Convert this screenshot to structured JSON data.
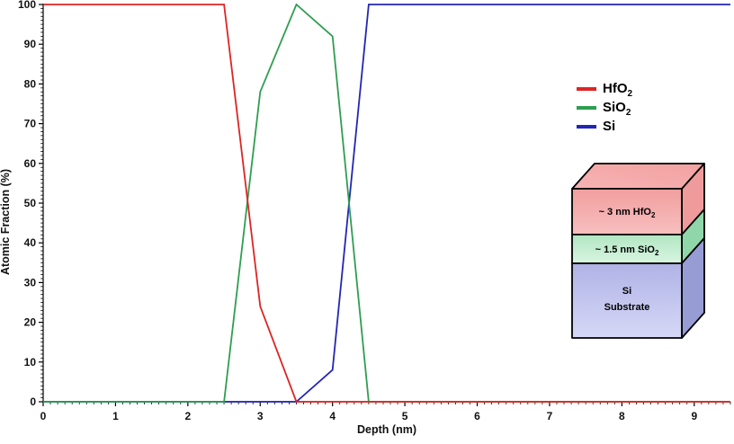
{
  "page": {
    "background": "#ffffff"
  },
  "chart_data": {
    "type": "line",
    "title": "",
    "xlabel": "Depth (nm)",
    "ylabel": "Atomic Fraction (%)",
    "xlim": [
      0,
      9.5
    ],
    "ylim": [
      0,
      100
    ],
    "x_major_ticks": [
      0,
      1,
      2,
      3,
      4,
      5,
      6,
      7,
      8,
      9
    ],
    "x_minor_step": 0.1,
    "y_major_ticks": [
      0,
      10,
      20,
      30,
      40,
      50,
      60,
      70,
      80,
      90,
      100
    ],
    "y_minor_step": 1,
    "grid": false,
    "legend_position": "upper-right",
    "x": [
      0,
      0.5,
      1,
      1.5,
      2,
      2.5,
      3,
      3.5,
      4,
      4.5,
      5,
      5.5,
      6,
      6.5,
      7,
      7.5,
      8,
      8.5,
      9,
      9.5
    ],
    "series": [
      {
        "name": "HfO2",
        "label_base": "HfO",
        "label_sub": "2",
        "color": "#de2424",
        "values": [
          100,
          100,
          100,
          100,
          100,
          100,
          24,
          0,
          0,
          0,
          0,
          0,
          0,
          0,
          0,
          0,
          0,
          0,
          0,
          0
        ]
      },
      {
        "name": "SiO2",
        "label_base": "SiO",
        "label_sub": "2",
        "color": "#2e9e50",
        "values": [
          0,
          0,
          0,
          0,
          0,
          0,
          78,
          100,
          92,
          0,
          0,
          0,
          0,
          0,
          0,
          0,
          0,
          0,
          0,
          0
        ]
      },
      {
        "name": "Si",
        "label_base": "Si",
        "label_sub": "",
        "color": "#2326b4",
        "values": [
          0,
          0,
          0,
          0,
          0,
          0,
          0,
          0,
          8,
          100,
          100,
          100,
          100,
          100,
          100,
          100,
          100,
          100,
          100,
          100
        ]
      }
    ]
  },
  "legend": {
    "items": [
      {
        "name": "HfO2",
        "label_base": "HfO",
        "label_sub": "2",
        "color": "#de2424"
      },
      {
        "name": "SiO2",
        "label_base": "SiO",
        "label_sub": "2",
        "color": "#2e9e50"
      },
      {
        "name": "Si",
        "label_base": "Si",
        "label_sub": "",
        "color": "#2326b4"
      }
    ]
  },
  "stack_diagram": {
    "layers": [
      {
        "name": "hfo2-layer",
        "label_base": "~ 3 nm HfO",
        "label_sub": "2",
        "front": [
          "#f19e9e",
          "#f8bfbf"
        ],
        "side": "#ef9b9b",
        "top": [
          "#f7b3b3",
          "#f2a1a1"
        ]
      },
      {
        "name": "sio2-layer",
        "label_base": "~ 1.5 nm SiO",
        "label_sub": "2",
        "front": [
          "#b2e6c1",
          "#d8f5e1"
        ],
        "side": "#8fd7a9"
      },
      {
        "name": "si-substrate-layer",
        "label_lines": [
          "Si",
          "Substrate"
        ],
        "front": [
          "#b0b3e6",
          "#d6d8f6"
        ],
        "side": "#989cd5"
      }
    ],
    "outline_color": "#000000"
  }
}
